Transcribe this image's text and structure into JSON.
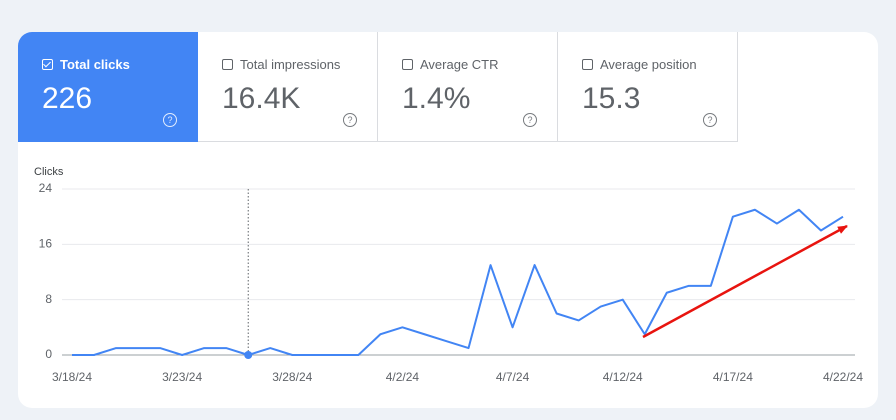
{
  "tiles": [
    {
      "label": "Total clicks",
      "value": "226",
      "selected": true
    },
    {
      "label": "Total impressions",
      "value": "16.4K",
      "selected": false
    },
    {
      "label": "Average CTR",
      "value": "1.4%",
      "selected": false
    },
    {
      "label": "Average position",
      "value": "15.3",
      "selected": false
    }
  ],
  "chart_data": {
    "type": "line",
    "y_label": "Clicks",
    "categories": [
      "3/18/24",
      null,
      null,
      null,
      null,
      "3/23/24",
      null,
      null,
      null,
      null,
      "3/28/24",
      null,
      null,
      null,
      null,
      "4/2/24",
      null,
      null,
      null,
      null,
      "4/7/24",
      null,
      null,
      null,
      null,
      "4/12/24",
      null,
      null,
      null,
      null,
      "4/17/24",
      null,
      null,
      null,
      null,
      "4/22/24"
    ],
    "values": [
      0,
      0,
      1,
      1,
      1,
      0,
      1,
      1,
      0,
      1,
      0,
      0,
      0,
      0,
      3,
      4,
      3,
      2,
      1,
      13,
      4,
      13,
      6,
      5,
      7,
      8,
      3,
      9,
      10,
      10,
      20,
      21,
      19,
      21,
      18,
      20
    ],
    "color": "#4285f4",
    "ylim": [
      0,
      24
    ],
    "yticks": [
      0,
      8,
      16,
      24
    ],
    "grid": true
  }
}
